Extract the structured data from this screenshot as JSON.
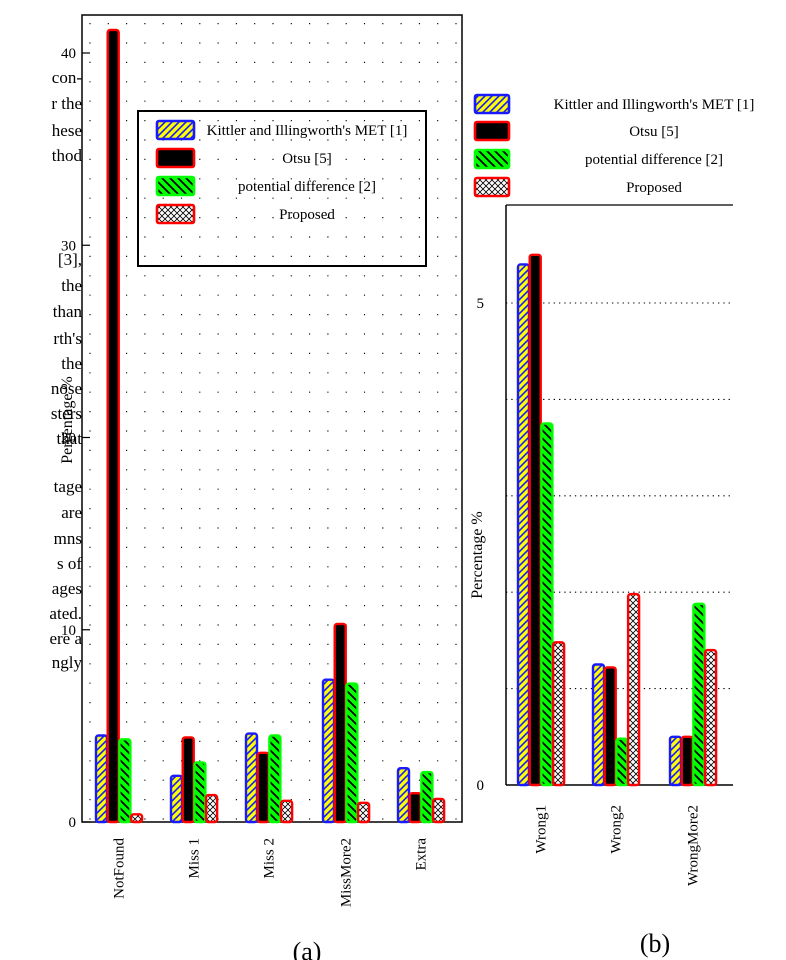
{
  "background_text": [
    "con-",
    "r the",
    "hese",
    "thod",
    "[3],",
    "the",
    "than",
    "rth's",
    "the",
    "nose",
    "sters",
    "that",
    "tage",
    "are",
    "mns",
    "s of",
    "ages",
    "ated.",
    "ere a",
    "ngly"
  ],
  "legend": [
    "Kittler and Illingworth's MET [1]",
    "Otsu [5]",
    "potential difference [2]",
    "Proposed"
  ],
  "colors": {
    "kittler_border": "#1a1aff",
    "kittler_fill": "#ffff00",
    "otsu_border": "#ff0000",
    "otsu_fill": "#000000",
    "potential_fill": "#00ff00",
    "proposed_border": "#ff0000",
    "proposed_fill": "#ffffff"
  },
  "chart_data": [
    {
      "type": "bar",
      "label": "(a)",
      "ylabel": "Percentage %",
      "ylim": [
        0,
        40
      ],
      "yticks": [
        "0",
        "10",
        "20",
        "30",
        "40"
      ],
      "grid": "dotted",
      "legend_position": "top-right",
      "categories": [
        "NotFound",
        "Miss 1",
        "Miss 2",
        "MissMore2",
        "Extra"
      ],
      "series": [
        {
          "name": "Kittler and Illingworth's MET [1]",
          "values": [
            4.5,
            2.4,
            4.6,
            7.4,
            2.8
          ]
        },
        {
          "name": "Otsu [5]",
          "values": [
            41.2,
            4.4,
            3.6,
            10.3,
            1.5
          ]
        },
        {
          "name": "potential difference [2]",
          "values": [
            4.3,
            3.1,
            4.5,
            7.2,
            2.6
          ]
        },
        {
          "name": "Proposed",
          "values": [
            0.4,
            1.4,
            1.1,
            1.0,
            1.2
          ]
        }
      ]
    },
    {
      "type": "bar",
      "label": "(b)",
      "ylabel": "Percentage %",
      "ylim": [
        0,
        6
      ],
      "yticks": [
        "0",
        "5"
      ],
      "grid": "dotted-horizontal",
      "legend_position": "top",
      "categories": [
        "Wrong1",
        "Wrong2",
        "WrongMore2"
      ],
      "series": [
        {
          "name": "Kittler and Illingworth's MET [1]",
          "values": [
            5.4,
            1.25,
            0.5
          ]
        },
        {
          "name": "Otsu [5]",
          "values": [
            5.5,
            1.22,
            0.5
          ]
        },
        {
          "name": "potential difference [2]",
          "values": [
            3.75,
            0.48,
            1.88
          ]
        },
        {
          "name": "Proposed",
          "values": [
            1.48,
            1.98,
            1.4
          ]
        }
      ]
    }
  ]
}
